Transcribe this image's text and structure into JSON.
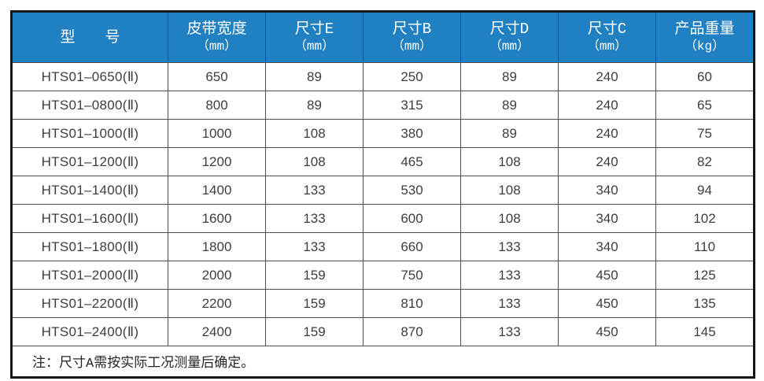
{
  "colors": {
    "header_bg": "#2180C2",
    "header_text": "#ffffff",
    "outer_border": "#161616",
    "inner_border": "#4c4c4c",
    "body_text": "#3d3d3d"
  },
  "table": {
    "columns": [
      {
        "label": "型　　号",
        "unit": ""
      },
      {
        "label": "皮带宽度",
        "unit": "（mm）"
      },
      {
        "label": "尺寸E",
        "unit": "（mm）"
      },
      {
        "label": "尺寸B",
        "unit": "（mm）"
      },
      {
        "label": "尺寸D",
        "unit": "（mm）"
      },
      {
        "label": "尺寸C",
        "unit": "（mm）"
      },
      {
        "label": "产品重量",
        "unit": "（kg）"
      }
    ],
    "rows": [
      [
        "HTS01–0650(Ⅱ)",
        "650",
        "89",
        "250",
        "89",
        "240",
        "60"
      ],
      [
        "HTS01–0800(Ⅱ)",
        "800",
        "89",
        "315",
        "89",
        "240",
        "65"
      ],
      [
        "HTS01–1000(Ⅱ)",
        "1000",
        "108",
        "380",
        "89",
        "240",
        "75"
      ],
      [
        "HTS01–1200(Ⅱ)",
        "1200",
        "108",
        "465",
        "108",
        "240",
        "82"
      ],
      [
        "HTS01–1400(Ⅱ)",
        "1400",
        "133",
        "530",
        "108",
        "340",
        "94"
      ],
      [
        "HTS01–1600(Ⅱ)",
        "1600",
        "133",
        "600",
        "108",
        "340",
        "102"
      ],
      [
        "HTS01–1800(Ⅱ)",
        "1800",
        "133",
        "660",
        "133",
        "340",
        "110"
      ],
      [
        "HTS01–2000(Ⅱ)",
        "2000",
        "159",
        "750",
        "133",
        "450",
        "125"
      ],
      [
        "HTS01–2200(Ⅱ)",
        "2200",
        "159",
        "810",
        "133",
        "450",
        "135"
      ],
      [
        "HTS01–2400(Ⅱ)",
        "2400",
        "159",
        "870",
        "133",
        "450",
        "145"
      ]
    ],
    "note": "注：尺寸A需按实际工况测量后确定。"
  }
}
